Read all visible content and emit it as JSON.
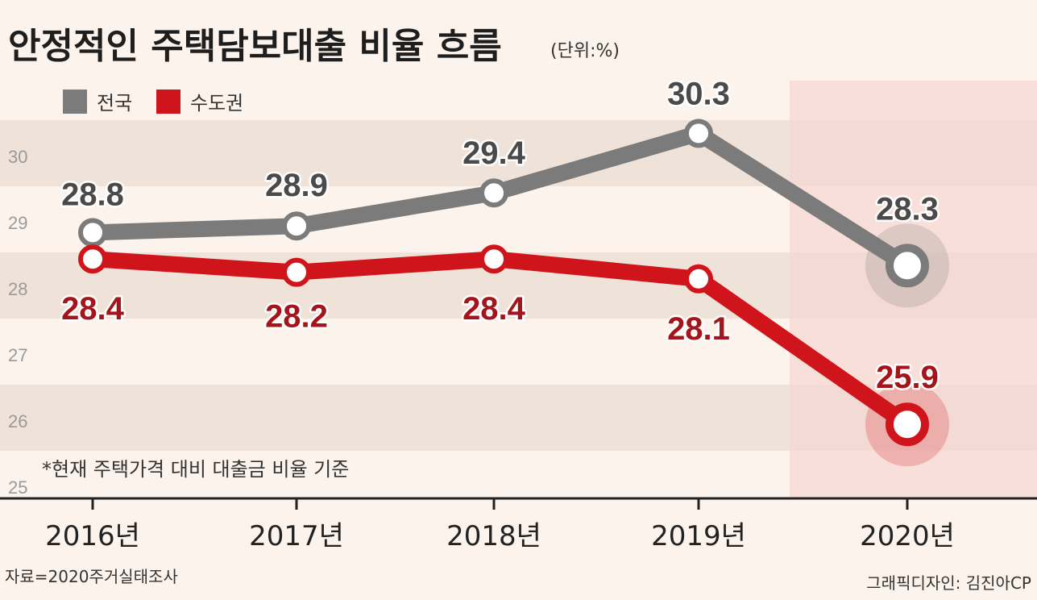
{
  "title": "안정적인 주택담보대출 비율 흐름",
  "unit": "(단위:%)",
  "footnote": "*현재 주택가격 대비 대출금 비율 기준",
  "source": "자료=2020주거실태조사",
  "credit": "그래픽디자인: 김진아CP",
  "colors": {
    "national": "#7b7b7b",
    "capital": "#d0141b",
    "background": "#fbf3ec",
    "band": "#efe3d9",
    "highlight": "#f6d4d2"
  },
  "chart_data": {
    "type": "line",
    "title": "안정적인 주택담보대출 비율 흐름",
    "categories": [
      "2016년",
      "2017년",
      "2018년",
      "2019년",
      "2020년"
    ],
    "series": [
      {
        "name": "전국",
        "values": [
          28.8,
          28.9,
          29.4,
          30.3,
          28.3
        ],
        "labels": [
          "28.8",
          "28.9",
          "29.4",
          "30.3",
          "28.3"
        ]
      },
      {
        "name": "수도권",
        "values": [
          28.4,
          28.2,
          28.4,
          28.1,
          25.9
        ],
        "labels": [
          "28.4",
          "28.2",
          "28.4",
          "28.1",
          "25.9"
        ]
      }
    ],
    "yticks": [
      "25",
      "26",
      "27",
      "28",
      "29",
      "30"
    ],
    "ylim": [
      24.7,
      31.5
    ],
    "xlabel": "",
    "ylabel": "",
    "legend": "top-left",
    "grid": "alternating bands",
    "highlight_category": "2020년"
  }
}
